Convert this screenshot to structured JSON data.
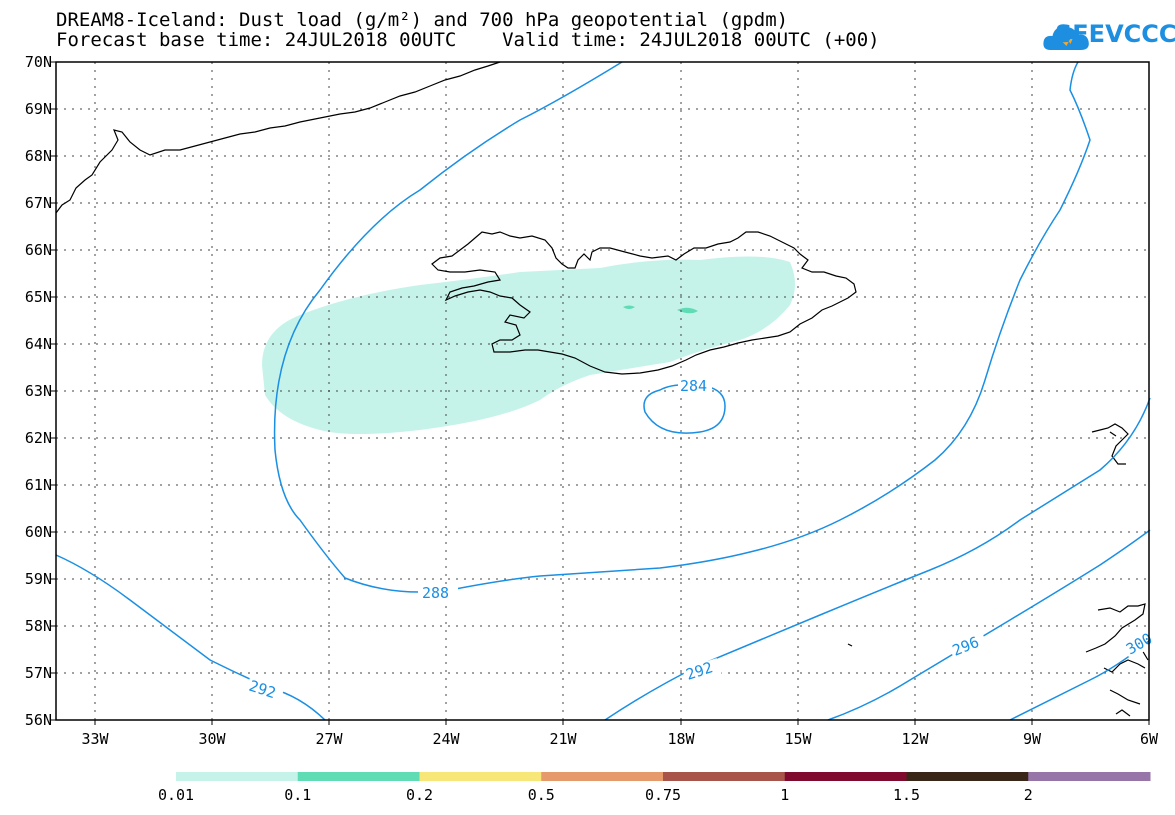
{
  "title": {
    "line1": "DREAM8-Iceland: Dust load (g/m²) and 700 hPa geopotential (gpdm)",
    "line2": "Forecast base time: 24JUL2018 00UTC    Valid time: 24JUL2018 00UTC (+00)"
  },
  "logo": {
    "text": "SEEVCCC",
    "icon": "cloud-icon",
    "color": "#1e8fe0"
  },
  "map": {
    "lat_labels": [
      "70N",
      "69N",
      "68N",
      "67N",
      "66N",
      "65N",
      "64N",
      "63N",
      "62N",
      "61N",
      "60N",
      "59N",
      "58N",
      "57N",
      "56N"
    ],
    "lon_labels": [
      "33W",
      "30W",
      "27W",
      "24W",
      "21W",
      "18W",
      "15W",
      "12W",
      "9W",
      "6W"
    ],
    "contour_color": "#1a8fe3",
    "coast_color": "#000000",
    "contour_labels": [
      "284",
      "288",
      "292",
      "292",
      "296",
      "300"
    ]
  },
  "colorbar": {
    "colors": [
      "#c5f3ea",
      "#5fdcb4",
      "#f7e678",
      "#e69a6c",
      "#a9544a",
      "#800a2e",
      "#3a2616",
      "#9775a8"
    ],
    "labels": [
      "0.01",
      "0.1",
      "0.2",
      "0.5",
      "0.75",
      "1",
      "1.5",
      "2"
    ]
  }
}
